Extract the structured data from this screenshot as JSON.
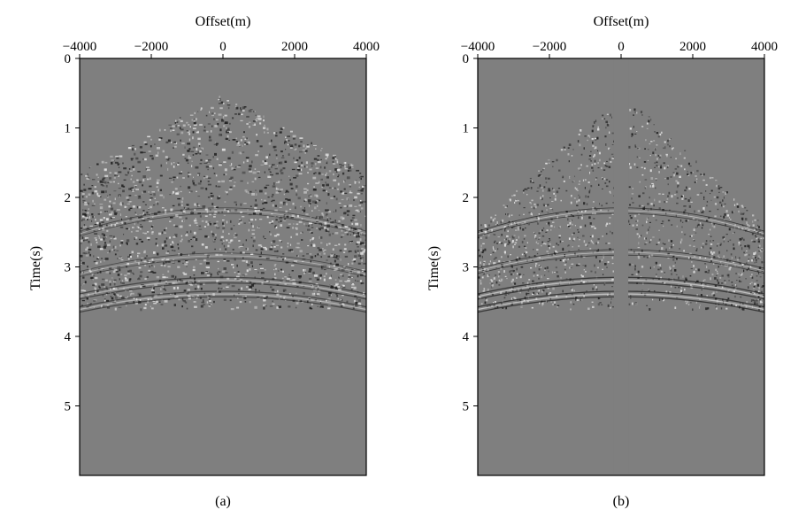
{
  "figure": {
    "panels": [
      {
        "caption": "(a)",
        "xlabel": "Offset(m)",
        "ylabel": "Time(s)",
        "xticks": [
          "−4000",
          "−2000",
          "0",
          "2000",
          "4000"
        ],
        "yticks": [
          "0",
          "1",
          "2",
          "3",
          "4",
          "5"
        ]
      },
      {
        "caption": "(b)",
        "xlabel": "Offset(m)",
        "ylabel": "Time(s)",
        "xticks": [
          "−4000",
          "−2000",
          "0",
          "2000",
          "4000"
        ],
        "yticks": [
          "0",
          "1",
          "2",
          "3",
          "4",
          "5"
        ]
      }
    ]
  },
  "chart_data": [
    {
      "type": "heatmap",
      "title": "",
      "xlabel": "Offset(m)",
      "ylabel": "Time(s)",
      "xlim": [
        -4000,
        4000
      ],
      "ylim": [
        0,
        6
      ],
      "y_inverted": true,
      "x_ticks": [
        -4000,
        -2000,
        0,
        2000,
        4000
      ],
      "y_ticks": [
        0,
        1,
        2,
        3,
        4,
        5
      ],
      "background_color": "#7f7f7f",
      "apex_time_s": 0.5,
      "reflection_times_s": [
        2.15,
        2.8,
        3.15,
        3.35
      ],
      "gap_half_width_m": 0
    },
    {
      "type": "heatmap",
      "title": "",
      "xlabel": "Offset(m)",
      "ylabel": "Time(s)",
      "xlim": [
        -4000,
        4000
      ],
      "ylim": [
        0,
        6
      ],
      "y_inverted": true,
      "x_ticks": [
        -4000,
        -2000,
        0,
        2000,
        4000
      ],
      "y_ticks": [
        0,
        1,
        2,
        3,
        4,
        5
      ],
      "background_color": "#7f7f7f",
      "apex_time_s": 0.45,
      "reflection_times_s": [
        2.15,
        2.75,
        3.15,
        3.35
      ],
      "gap_half_width_m": 200
    }
  ]
}
